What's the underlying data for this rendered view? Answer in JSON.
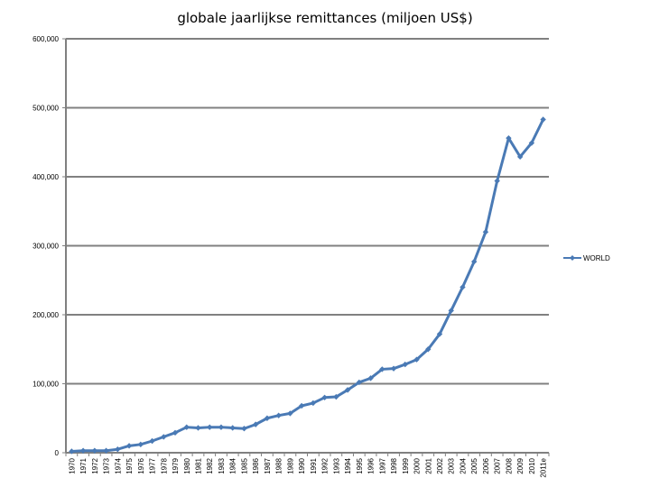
{
  "chart_data": {
    "type": "line",
    "title": "globale jaarlijkse remittances (miljoen US$)",
    "xlabel": "",
    "ylabel": "",
    "ylim": [
      0,
      600000
    ],
    "y_ticks": [
      "0",
      "100,000",
      "200,000",
      "300,000",
      "400,000",
      "500,000",
      "600,000"
    ],
    "y_tick_values": [
      0,
      100000,
      200000,
      300000,
      400000,
      500000,
      600000
    ],
    "grid": true,
    "legend_position": "right",
    "colors": {
      "series": "#4a7ab5",
      "grid": "#808080",
      "axis": "#808080"
    },
    "categories": [
      "1970",
      "1971",
      "1972",
      "1973",
      "1974",
      "1975",
      "1976",
      "1977",
      "1978",
      "1979",
      "1980",
      "1981",
      "1982",
      "1983",
      "1984",
      "1985",
      "1986",
      "1987",
      "1988",
      "1989",
      "1990",
      "1991",
      "1992",
      "1993",
      "1994",
      "1995",
      "1996",
      "1997",
      "1998",
      "1999",
      "2000",
      "2001",
      "2002",
      "2003",
      "2004",
      "2005",
      "2006",
      "2007",
      "2008",
      "2009",
      "2010",
      "2011e"
    ],
    "series": [
      {
        "name": "WORLD",
        "values": [
          2000,
          3000,
          3000,
          3000,
          5000,
          10000,
          12000,
          17000,
          23000,
          29000,
          37000,
          36000,
          37000,
          37000,
          36000,
          35000,
          41000,
          50000,
          54000,
          57000,
          68000,
          72000,
          80000,
          81000,
          91000,
          102000,
          108000,
          121000,
          122000,
          128000,
          135000,
          150000,
          172000,
          206000,
          240000,
          277000,
          320000,
          394000,
          456000,
          429000,
          449000,
          483000
        ]
      }
    ]
  }
}
